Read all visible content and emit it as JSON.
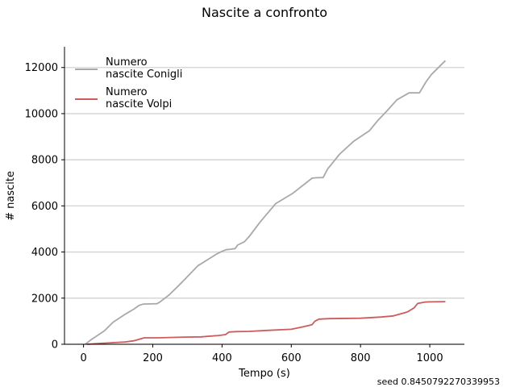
{
  "chart_data": {
    "type": "line",
    "title": "Nascite a confronto",
    "xlabel": "Tempo (s)",
    "ylabel": "# nascite",
    "xlim": [
      -55,
      1100
    ],
    "ylim": [
      0,
      12900
    ],
    "xticks": [
      0,
      200,
      400,
      600,
      800,
      1000
    ],
    "yticks": [
      0,
      2000,
      4000,
      6000,
      8000,
      10000,
      12000
    ],
    "grid": "horizontal",
    "legend_position": "top-left",
    "series": [
      {
        "name": "Numero\n nascite Conigli",
        "color": "#a9a9a9",
        "points": [
          [
            5,
            0
          ],
          [
            20,
            180
          ],
          [
            45,
            430
          ],
          [
            60,
            580
          ],
          [
            85,
            950
          ],
          [
            100,
            1100
          ],
          [
            120,
            1300
          ],
          [
            145,
            1520
          ],
          [
            160,
            1680
          ],
          [
            172,
            1740
          ],
          [
            195,
            1750
          ],
          [
            212,
            1760
          ],
          [
            222,
            1850
          ],
          [
            248,
            2150
          ],
          [
            285,
            2700
          ],
          [
            330,
            3400
          ],
          [
            385,
            3920
          ],
          [
            400,
            4030
          ],
          [
            412,
            4100
          ],
          [
            425,
            4120
          ],
          [
            438,
            4150
          ],
          [
            445,
            4300
          ],
          [
            465,
            4450
          ],
          [
            480,
            4700
          ],
          [
            510,
            5300
          ],
          [
            555,
            6100
          ],
          [
            605,
            6550
          ],
          [
            660,
            7200
          ],
          [
            670,
            7220
          ],
          [
            692,
            7230
          ],
          [
            705,
            7600
          ],
          [
            740,
            8250
          ],
          [
            780,
            8800
          ],
          [
            825,
            9250
          ],
          [
            850,
            9700
          ],
          [
            875,
            10100
          ],
          [
            905,
            10600
          ],
          [
            940,
            10900
          ],
          [
            970,
            10900
          ],
          [
            990,
            11400
          ],
          [
            1005,
            11700
          ],
          [
            1045,
            12300
          ]
        ]
      },
      {
        "name": "Numero\n nascite Volpi",
        "color": "#cd5c5c",
        "points": [
          [
            10,
            0
          ],
          [
            60,
            50
          ],
          [
            120,
            100
          ],
          [
            145,
            150
          ],
          [
            175,
            280
          ],
          [
            215,
            280
          ],
          [
            290,
            310
          ],
          [
            340,
            320
          ],
          [
            390,
            380
          ],
          [
            410,
            420
          ],
          [
            420,
            530
          ],
          [
            440,
            550
          ],
          [
            480,
            560
          ],
          [
            530,
            600
          ],
          [
            600,
            650
          ],
          [
            635,
            760
          ],
          [
            660,
            850
          ],
          [
            668,
            1000
          ],
          [
            680,
            1090
          ],
          [
            710,
            1110
          ],
          [
            800,
            1130
          ],
          [
            860,
            1180
          ],
          [
            895,
            1230
          ],
          [
            935,
            1400
          ],
          [
            955,
            1580
          ],
          [
            965,
            1770
          ],
          [
            985,
            1830
          ],
          [
            1000,
            1840
          ],
          [
            1045,
            1850
          ]
        ]
      }
    ],
    "annotations": [
      "seed 0.8450792270339953"
    ]
  }
}
